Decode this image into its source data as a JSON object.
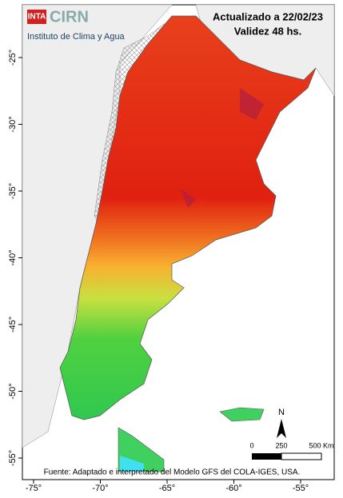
{
  "logo": {
    "badge": "INTA",
    "name": "CIRN",
    "subtitle": "Instituto de Clima y Agua"
  },
  "header": {
    "updated": "Actualizado a 22/02/23",
    "validity": "Validez 48 hs."
  },
  "axes": {
    "lat_labels": [
      "-25°",
      "-30°",
      "-35°",
      "-40°",
      "-45°",
      "-50°",
      "-55°"
    ],
    "lon_labels": [
      "-75°",
      "-70°",
      "-65°",
      "-60°",
      "-55°"
    ]
  },
  "north_arrow": "N",
  "scale_bar": {
    "start": "0",
    "mid": "250",
    "end": "500 Km"
  },
  "footer": "Fuente: Adaptado e interpretado del Modelo GFS del COLA-IGES, USA."
}
